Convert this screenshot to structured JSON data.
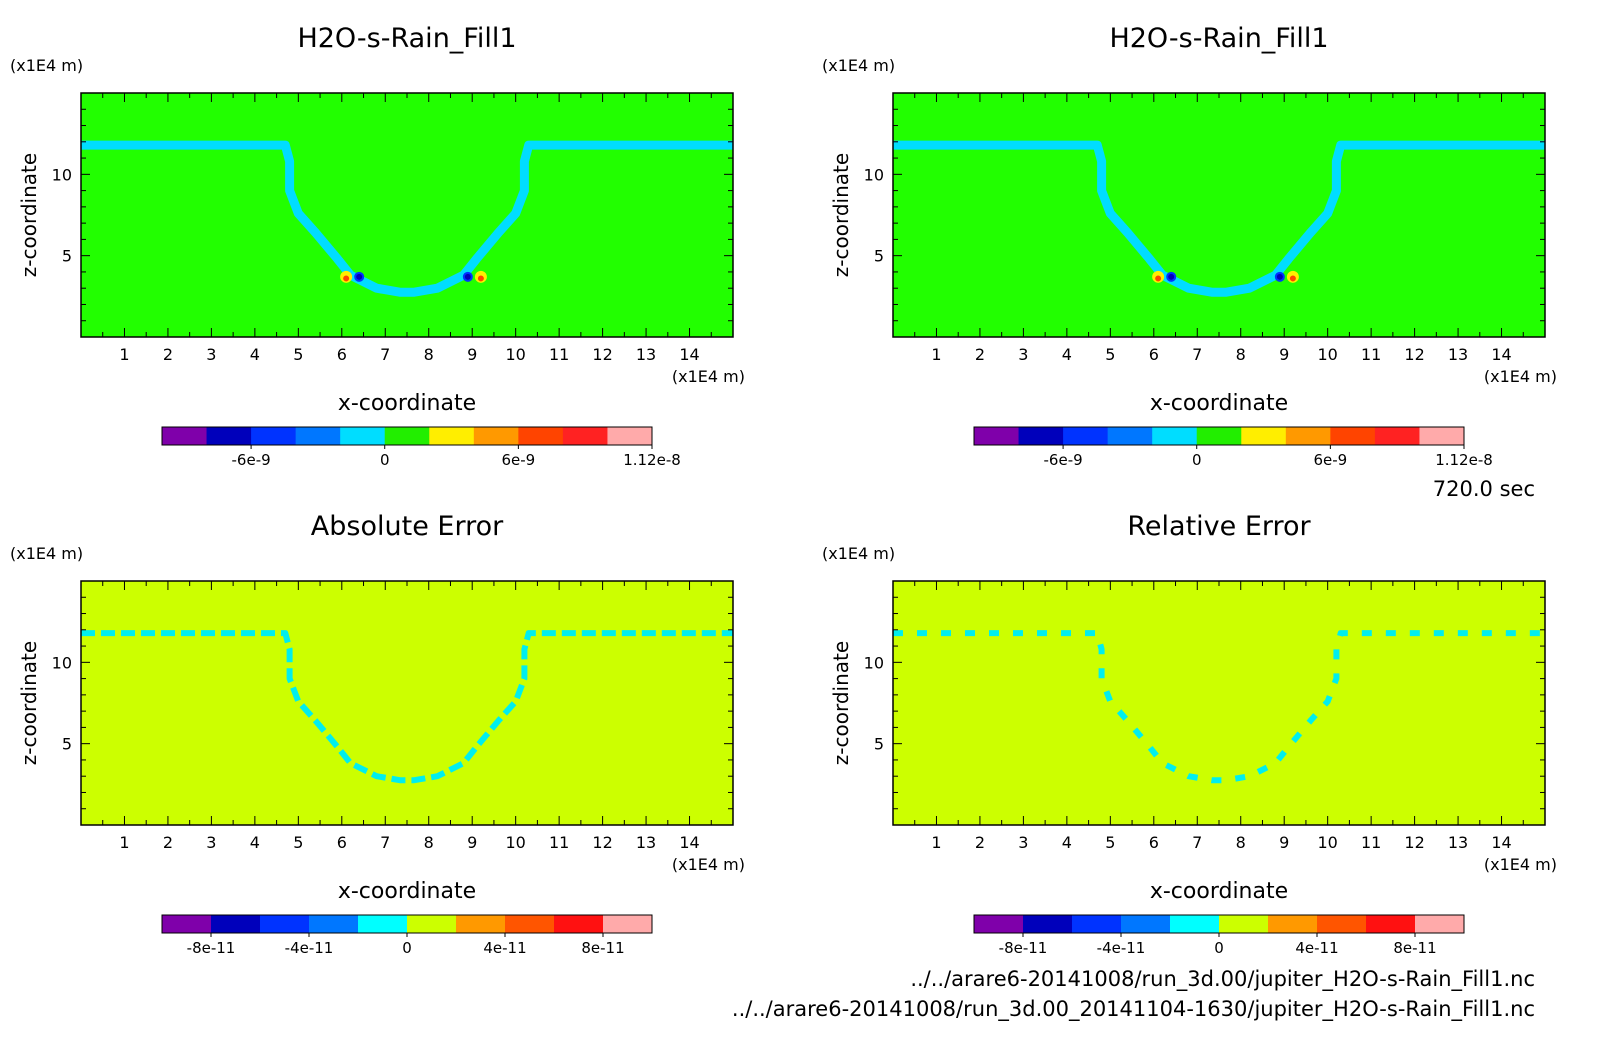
{
  "time_label": "720.0 sec",
  "files": [
    "../../arare6-20141008/run_3d.00/jupiter_H2O-s-Rain_Fill1.nc",
    "../../arare6-20141008/run_3d.00_20141104-1630/jupiter_H2O-s-Rain_Fill1.nc"
  ],
  "colors": {
    "background_top": "#22ff00",
    "band_top": "#00ddff",
    "background_bottom": "#ccff00",
    "band_bottom": "#00eeee"
  },
  "chart_data": [
    {
      "type": "heatmap",
      "title": "H2O-s-Rain_Fill1",
      "xlabel": "x-coordinate",
      "ylabel": "z-coordinate",
      "x_unit": "(x1E4 m)",
      "y_unit": "(x1E4 m)",
      "xlim": [
        0,
        15
      ],
      "ylim": [
        0,
        15
      ],
      "x_ticks": [
        "1",
        "2",
        "3",
        "4",
        "5",
        "6",
        "7",
        "8",
        "9",
        "10",
        "11",
        "12",
        "13",
        "14"
      ],
      "y_ticks": [
        "5",
        "10"
      ],
      "colorbar": {
        "colors": [
          "#7f00aa",
          "#0000bb",
          "#0033ff",
          "#0077ff",
          "#00ddff",
          "#22ee00",
          "#ffee00",
          "#ff9900",
          "#ff4400",
          "#ff2222",
          "#ffaaaa"
        ],
        "labels": [
          "-6e-9",
          "0",
          "6e-9",
          "1.12e-8"
        ]
      }
    },
    {
      "type": "heatmap",
      "title": "H2O-s-Rain_Fill1",
      "xlabel": "x-coordinate",
      "ylabel": "z-coordinate",
      "x_unit": "(x1E4 m)",
      "y_unit": "(x1E4 m)",
      "xlim": [
        0,
        15
      ],
      "ylim": [
        0,
        15
      ],
      "x_ticks": [
        "1",
        "2",
        "3",
        "4",
        "5",
        "6",
        "7",
        "8",
        "9",
        "10",
        "11",
        "12",
        "13",
        "14"
      ],
      "y_ticks": [
        "5",
        "10"
      ],
      "colorbar": {
        "colors": [
          "#7f00aa",
          "#0000bb",
          "#0033ff",
          "#0077ff",
          "#00ddff",
          "#22ee00",
          "#ffee00",
          "#ff9900",
          "#ff4400",
          "#ff2222",
          "#ffaaaa"
        ],
        "labels": [
          "-6e-9",
          "0",
          "6e-9",
          "1.12e-8"
        ]
      }
    },
    {
      "type": "heatmap",
      "title": "Absolute Error",
      "xlabel": "x-coordinate",
      "ylabel": "z-coordinate",
      "x_unit": "(x1E4 m)",
      "y_unit": "(x1E4 m)",
      "xlim": [
        0,
        15
      ],
      "ylim": [
        0,
        15
      ],
      "x_ticks": [
        "1",
        "2",
        "3",
        "4",
        "5",
        "6",
        "7",
        "8",
        "9",
        "10",
        "11",
        "12",
        "13",
        "14"
      ],
      "y_ticks": [
        "5",
        "10"
      ],
      "colorbar": {
        "colors": [
          "#7f00aa",
          "#0000bb",
          "#0033ff",
          "#0077ff",
          "#00ffff",
          "#ccff00",
          "#ff9900",
          "#ff5500",
          "#ff1111",
          "#ffaaaa"
        ],
        "labels": [
          "-8e-11",
          "-4e-11",
          "0",
          "4e-11",
          "8e-11"
        ]
      }
    },
    {
      "type": "heatmap",
      "title": "Relative Error",
      "xlabel": "x-coordinate",
      "ylabel": "z-coordinate",
      "x_unit": "(x1E4 m)",
      "y_unit": "(x1E4 m)",
      "xlim": [
        0,
        15
      ],
      "ylim": [
        0,
        15
      ],
      "x_ticks": [
        "1",
        "2",
        "3",
        "4",
        "5",
        "6",
        "7",
        "8",
        "9",
        "10",
        "11",
        "12",
        "13",
        "14"
      ],
      "y_ticks": [
        "5",
        "10"
      ],
      "colorbar": {
        "colors": [
          "#7f00aa",
          "#0000bb",
          "#0033ff",
          "#0077ff",
          "#00ffff",
          "#ccff00",
          "#ff9900",
          "#ff5500",
          "#ff1111",
          "#ffaaaa"
        ],
        "labels": [
          "-8e-11",
          "-4e-11",
          "0",
          "4e-11",
          "8e-11"
        ]
      }
    }
  ]
}
